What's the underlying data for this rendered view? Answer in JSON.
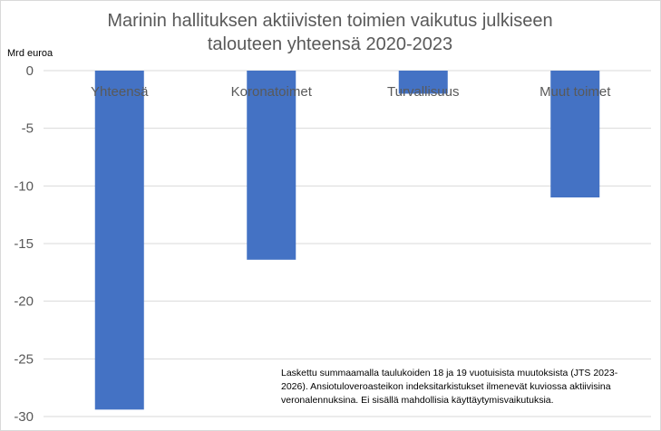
{
  "chart_data": {
    "type": "bar",
    "title_lines": [
      "Marinin hallituksen aktiivisten toimien vaikutus julkiseen",
      "talouteen yhteensä 2020-2023"
    ],
    "ylabel": "Mrd euroa",
    "categories": [
      "Yhteensä",
      "Koronatoimet",
      "Turvallisuus",
      "Muut toimet"
    ],
    "values": [
      -29.4,
      -16.4,
      -2.0,
      -11.0
    ],
    "ylim": [
      -30,
      0
    ],
    "yticks": [
      0,
      -5,
      -10,
      -15,
      -20,
      -25,
      -30
    ],
    "grid": true,
    "bar_color": "#4472c4",
    "gridline_color": "#d9d9d9",
    "note_lines": [
      "Laskettu summaamalla taulukoiden 18 ja 19 vuotuisista muutoksista (JTS 2023-",
      "2026).  Ansiotuloveroasteikon indeksitarkistukset ilmenevät kuviossa aktiivisina",
      "veronalennuksina. Ei sisällä mahdollisia käyttäytymisvaikutuksia."
    ]
  }
}
